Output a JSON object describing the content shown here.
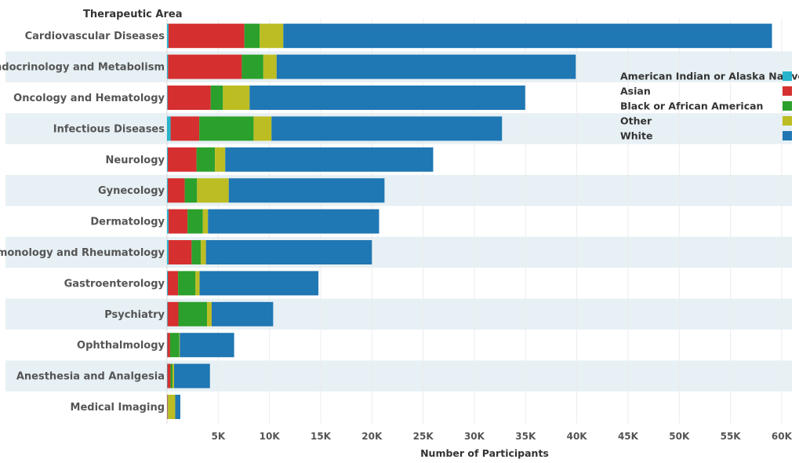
{
  "chart_data": {
    "type": "bar",
    "orientation": "horizontal",
    "stacked": true,
    "row_header": "Therapeutic Area",
    "xlabel": "Number of Participants",
    "xlim": [
      0,
      61000
    ],
    "xticks": [
      5000,
      10000,
      15000,
      20000,
      25000,
      30000,
      35000,
      40000,
      45000,
      50000,
      55000,
      60000
    ],
    "xtick_labels": [
      "5K",
      "10K",
      "15K",
      "20K",
      "25K",
      "30K",
      "35K",
      "40K",
      "45K",
      "50K",
      "55K",
      "60K"
    ],
    "grid": "vertical",
    "legend_position": "right",
    "categories": [
      "Cardiovascular Diseases",
      "Endocrinology and Metabolism",
      "Oncology and Hematology",
      "Infectious Diseases",
      "Neurology",
      "Gynecology",
      "Dermatology",
      "Pulmonology and Rheumatology",
      "Gastroenterology",
      "Psychiatry",
      "Ophthalmology",
      "Anesthesia and Analgesia",
      "Medical Imaging"
    ],
    "series": [
      {
        "name": "American Indian or Alaska Native",
        "color": "#27b3cc",
        "values": [
          150,
          100,
          60,
          350,
          80,
          80,
          150,
          150,
          80,
          60,
          40,
          40,
          20
        ]
      },
      {
        "name": "Asian",
        "color": "#d62f2f",
        "values": [
          7400,
          7200,
          4200,
          2800,
          2800,
          1650,
          1850,
          2250,
          1000,
          1050,
          260,
          300,
          50
        ]
      },
      {
        "name": "Black or African American",
        "color": "#2ca02c",
        "values": [
          1500,
          2100,
          1200,
          5300,
          1800,
          1200,
          1500,
          900,
          1700,
          2800,
          900,
          200,
          30
        ]
      },
      {
        "name": "Other",
        "color": "#bcbd22",
        "values": [
          2300,
          1300,
          2600,
          1750,
          1000,
          3100,
          500,
          500,
          400,
          450,
          50,
          150,
          700
        ]
      },
      {
        "name": "White",
        "color": "#1f77b4",
        "values": [
          47700,
          29200,
          26900,
          22500,
          20300,
          15200,
          16700,
          16200,
          11600,
          6000,
          5300,
          3500,
          500
        ]
      }
    ]
  }
}
